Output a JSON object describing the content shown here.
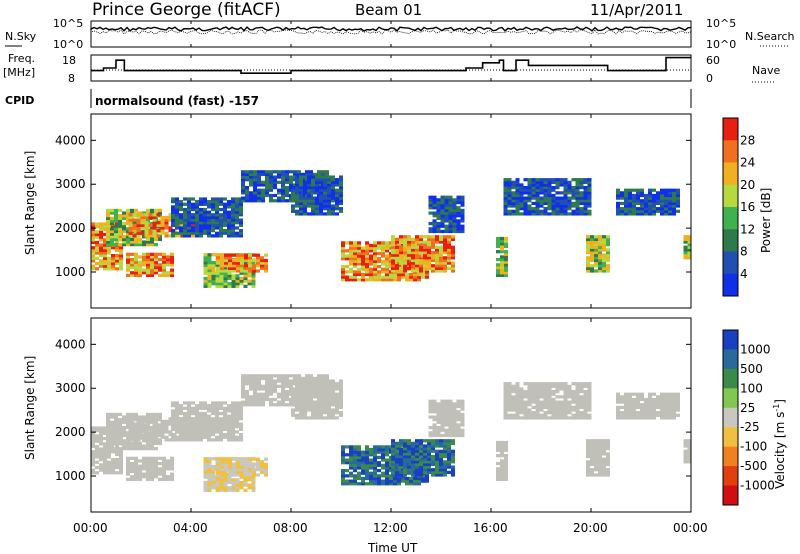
{
  "header": {
    "station": "Prince George (fitACF)",
    "beam": "Beam 01",
    "date": "11/Apr/2011"
  },
  "noise_panel": {
    "left_label": "N.Sky",
    "left_top_tick": "10^5",
    "left_bottom_tick": "10^0",
    "right_label": "N.Search",
    "right_top_tick": "10^5",
    "right_bottom_tick": "10^0"
  },
  "freq_panel": {
    "left_label_line1": "Freq.",
    "left_label_line2": "[MHz]",
    "left_ticks": [
      "18",
      "8"
    ],
    "right_label": "Nave",
    "right_ticks": [
      "60",
      "0"
    ],
    "cpid_label": "CPID",
    "cpid_text": "normalsound (fast) -157"
  },
  "colors": {
    "power_scale": [
      "#1030e8",
      "#2050b0",
      "#2e7a4c",
      "#40b050",
      "#b8d840",
      "#f0b020",
      "#f07020",
      "#e82010"
    ],
    "velocity_scale": [
      "#1840c0",
      "#2a6a9a",
      "#3a8a4a",
      "#80c850",
      "#c8c8c0",
      "#f0c040",
      "#f08020",
      "#e04010",
      "#d01010"
    ],
    "ground_scatter": "#c0c0b8"
  },
  "chart_data": [
    {
      "type": "line",
      "title": "Prince George (fitACF)",
      "panel": "Frequency / Nave",
      "x": [
        "00:00",
        "00:30",
        "01:00",
        "01:20",
        "03:00",
        "06:00",
        "08:00",
        "09:30",
        "12:00",
        "14:30",
        "15:00",
        "15:40",
        "16:20",
        "16:30",
        "17:00",
        "17:30",
        "19:00",
        "20:40",
        "23:00",
        "23:50"
      ],
      "series": [
        {
          "name": "Freq.",
          "values": [
            12,
            13,
            16,
            12,
            12,
            11,
            12,
            12,
            12,
            12,
            13,
            15,
            16,
            12,
            16,
            14,
            14,
            12,
            17,
            17
          ]
        }
      ],
      "ylim": [
        8,
        18
      ]
    },
    {
      "type": "heatmap",
      "panel": "Power",
      "xlabel": "Time UT",
      "ylabel": "Slant Range [km]",
      "x_ticks": [
        "00:00",
        "04:00",
        "08:00",
        "12:00",
        "16:00",
        "20:00",
        "00:00"
      ],
      "y_ticks": [
        "1000",
        "2000",
        "3000",
        "4000"
      ],
      "ylim": [
        180,
        4600
      ],
      "colorbar_label": "Power [dB]",
      "colorbar_ticks": [
        "4",
        "8",
        "12",
        "16",
        "20",
        "24",
        "28"
      ],
      "range": [
        0,
        30
      ]
    },
    {
      "type": "heatmap",
      "panel": "Velocity",
      "xlabel": "Time UT",
      "ylabel": "Slant Range [km]",
      "x_ticks": [
        "00:00",
        "04:00",
        "08:00",
        "12:00",
        "16:00",
        "20:00",
        "00:00"
      ],
      "y_ticks": [
        "1000",
        "2000",
        "3000",
        "4000"
      ],
      "ylim": [
        180,
        4600
      ],
      "colorbar_label": "Velocity [m s^-1]",
      "colorbar_ticks": [
        "1000",
        "500",
        "100",
        "25",
        "-25",
        "-100",
        "-500",
        "-1000"
      ]
    }
  ]
}
